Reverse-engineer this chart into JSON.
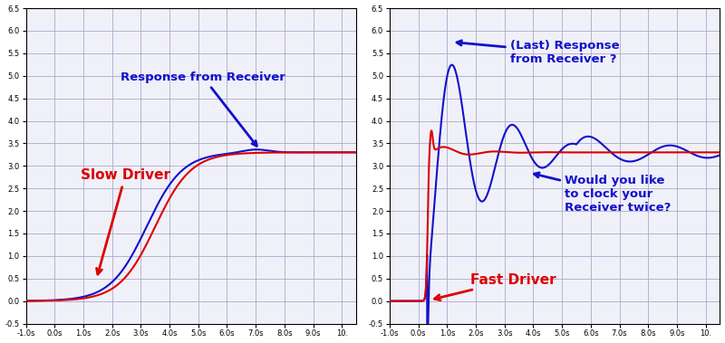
{
  "left_plot": {
    "xlim": [
      -1.0,
      10.5
    ],
    "ylim": [
      -0.5,
      6.5
    ],
    "xticks": [
      -1.0,
      0.0,
      1.0,
      2.0,
      3.0,
      4.0,
      5.0,
      6.0,
      7.0,
      8.0,
      9.0,
      10.0
    ],
    "yticks": [
      -0.5,
      0.0,
      0.5,
      1.0,
      1.5,
      2.0,
      2.5,
      3.0,
      3.5,
      4.0,
      4.5,
      5.0,
      5.5,
      6.0,
      6.5
    ],
    "xtick_labels": [
      "-1.0s",
      "0.0s",
      "1.0s",
      "2.0s",
      "3.0s",
      "4.0s",
      "5.0s",
      "6.0s",
      "7.0s",
      "8.0s",
      "9.0s",
      "10."
    ],
    "ytick_labels": [
      "-0.5",
      "0.0",
      "0.5",
      "1.0",
      "1.5",
      "2.0",
      "2.5",
      "3.0",
      "3.5",
      "4.0",
      "4.5",
      "5.0",
      "5.5",
      "6.0",
      "6.5"
    ],
    "label_slow_driver": "Slow Driver",
    "label_response": "Response from Receiver",
    "color_red": "#dd0000",
    "color_blue": "#1111cc",
    "bg_color": "#f0f0f8",
    "grid_color": "#aaaacc"
  },
  "right_plot": {
    "xlim": [
      -1.0,
      10.5
    ],
    "ylim": [
      -0.5,
      6.5
    ],
    "xticks": [
      -1.0,
      0.0,
      1.0,
      2.0,
      3.0,
      4.0,
      5.0,
      6.0,
      7.0,
      8.0,
      9.0,
      10.0
    ],
    "yticks": [
      -0.5,
      0.0,
      0.5,
      1.0,
      1.5,
      2.0,
      2.5,
      3.0,
      3.5,
      4.0,
      4.5,
      5.0,
      5.5,
      6.0,
      6.5
    ],
    "xtick_labels": [
      "-1.0s",
      "0.0s",
      "1.0s",
      "2.0s",
      "3.0s",
      "4.0s",
      "5.0s",
      "6.0s",
      "7.0s",
      "8.0s",
      "9.0s",
      "10."
    ],
    "ytick_labels": [
      "-0.5",
      "0.0",
      "0.5",
      "1.0",
      "1.5",
      "2.0",
      "2.5",
      "3.0",
      "3.5",
      "4.0",
      "4.5",
      "5.0",
      "5.5",
      "6.0",
      "6.5"
    ],
    "label_fast_driver": "Fast Driver",
    "label_response": "(Last) Response\nfrom Receiver ?",
    "label_clock": "Would you like\nto clock your\nReceiver twice?",
    "color_red": "#dd0000",
    "color_blue": "#1111cc",
    "bg_color": "#f0f0f8",
    "grid_color": "#aaaacc"
  }
}
